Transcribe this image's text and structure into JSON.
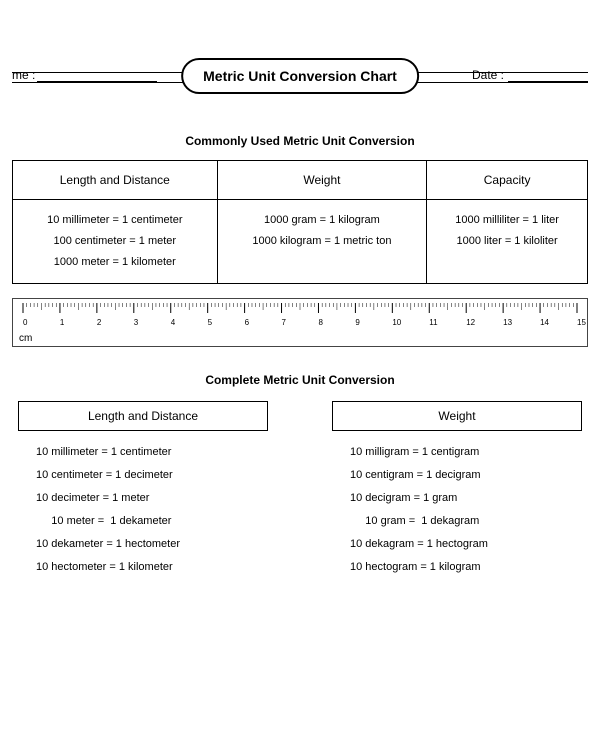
{
  "header": {
    "name_label": "me :",
    "date_label": "Date :",
    "title": "Metric Unit Conversion Chart"
  },
  "section1_title": "Commonly Used Metric Unit Conversion",
  "summary": {
    "columns": [
      "Length and Distance",
      "Weight",
      "Capacity"
    ],
    "rows": [
      [
        "10 millimeter = 1 centimeter",
        "1000 gram = 1 kilogram",
        "1000 milliliter = 1 liter"
      ],
      [
        "100 centimeter = 1 meter",
        "1000 kilogram = 1 metric ton",
        "1000 liter = 1 kiloliter"
      ],
      [
        "1000 meter = 1 kilometer",
        "",
        ""
      ]
    ]
  },
  "ruler": {
    "min": 0,
    "max": 15,
    "majors_step": 1,
    "minors_per_major": 10,
    "unit_label": "cm",
    "labels": [
      "0",
      "1",
      "2",
      "3",
      "4",
      "5",
      "6",
      "7",
      "8",
      "9",
      "10",
      "11",
      "12",
      "13",
      "14",
      "15"
    ]
  },
  "section2_title": "Complete Metric Unit Conversion",
  "complete": {
    "left": {
      "header": "Length and Distance",
      "items": [
        "10 millimeter = 1 centimeter",
        "10 centimeter = 1 decimeter",
        "10 decimeter = 1 meter",
        "     10 meter =  1 dekameter",
        "10 dekameter = 1 hectometer",
        "10 hectometer = 1 kilometer"
      ]
    },
    "right": {
      "header": "Weight",
      "items": [
        "10 milligram = 1 centigram",
        "10 centigram = 1 decigram",
        "10 decigram = 1 gram",
        "     10 gram =  1 dekagram",
        "10 dekagram = 1 hectogram",
        "10 hectogram = 1 kilogram"
      ]
    }
  }
}
